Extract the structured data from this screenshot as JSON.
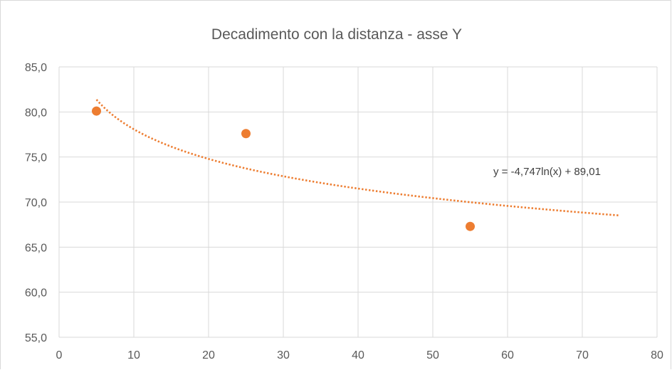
{
  "chart_data": {
    "type": "scatter",
    "title": "Decadimento con la distanza - asse Y",
    "xlabel": "",
    "ylabel": "",
    "xlim": [
      0,
      80
    ],
    "ylim": [
      55,
      85
    ],
    "x_ticks": [
      0,
      10,
      20,
      30,
      40,
      50,
      60,
      70,
      80
    ],
    "y_ticks": [
      "55,0",
      "60,0",
      "65,0",
      "70,0",
      "75,0",
      "80,0",
      "85,0"
    ],
    "grid": true,
    "legend": "none",
    "series": [
      {
        "color": "#ED7D31",
        "points": [
          {
            "x": 5,
            "y": 80.1
          },
          {
            "x": 25,
            "y": 77.6
          },
          {
            "x": 55,
            "y": 67.3
          }
        ]
      }
    ],
    "trendline": {
      "type": "logarithmic",
      "a": -4.747,
      "b": 89.01,
      "x_range": [
        5,
        75
      ],
      "style": "dotted",
      "color": "#ED7D31",
      "label": "y = -4,747ln(x) + 89,01"
    }
  }
}
